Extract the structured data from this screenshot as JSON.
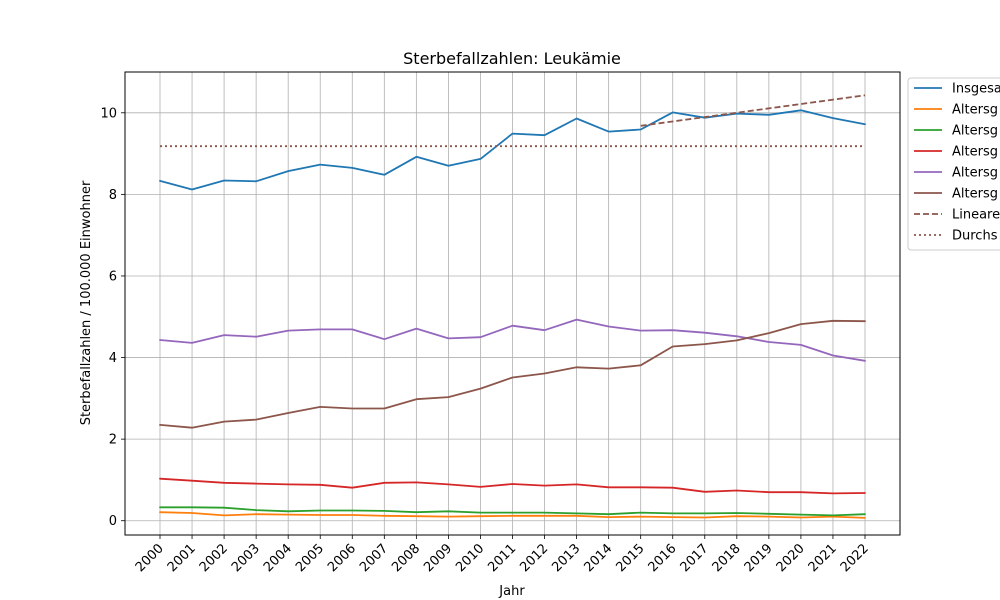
{
  "chart_data": {
    "type": "line",
    "title": "Sterbefallzahlen: Leukämie",
    "xlabel": "Jahr",
    "ylabel": "Sterbefallzahlen / 100.000 Einwohner",
    "ylim": [
      -0.35,
      11
    ],
    "yticks": [
      0,
      2,
      4,
      6,
      8,
      10
    ],
    "grid": true,
    "legend_position": "right-outside-top",
    "x": [
      "2000",
      "2001",
      "2002",
      "2003",
      "2004",
      "2005",
      "2006",
      "2007",
      "2008",
      "2009",
      "2010",
      "2011",
      "2012",
      "2013",
      "2014",
      "2015",
      "2016",
      "2017",
      "2018",
      "2019",
      "2020",
      "2021",
      "2022"
    ],
    "series": [
      {
        "name": "Insgesa",
        "color": "#1f77b4",
        "style": "solid",
        "values": [
          8.33,
          8.12,
          8.34,
          8.32,
          8.57,
          8.73,
          8.65,
          8.48,
          8.92,
          8.7,
          8.87,
          9.49,
          9.45,
          9.86,
          9.54,
          9.59,
          10.01,
          9.88,
          9.98,
          9.95,
          10.06,
          9.87,
          9.72
        ]
      },
      {
        "name": "Altersg",
        "color": "#ff7f0e",
        "style": "solid",
        "values": [
          0.21,
          0.19,
          0.13,
          0.16,
          0.15,
          0.14,
          0.14,
          0.12,
          0.11,
          0.1,
          0.11,
          0.12,
          0.12,
          0.12,
          0.09,
          0.1,
          0.09,
          0.08,
          0.11,
          0.1,
          0.08,
          0.1,
          0.07
        ]
      },
      {
        "name": "Altersg",
        "color": "#2ca02c",
        "style": "solid",
        "values": [
          0.33,
          0.33,
          0.32,
          0.26,
          0.23,
          0.25,
          0.25,
          0.24,
          0.21,
          0.23,
          0.2,
          0.2,
          0.2,
          0.18,
          0.16,
          0.2,
          0.18,
          0.18,
          0.19,
          0.17,
          0.15,
          0.13,
          0.16
        ]
      },
      {
        "name": "Altersg",
        "color": "#d62728",
        "style": "solid",
        "values": [
          1.03,
          0.98,
          0.93,
          0.91,
          0.89,
          0.88,
          0.81,
          0.93,
          0.94,
          0.89,
          0.83,
          0.9,
          0.86,
          0.89,
          0.82,
          0.82,
          0.81,
          0.71,
          0.74,
          0.7,
          0.7,
          0.67,
          0.68
        ]
      },
      {
        "name": "Altersg",
        "color": "#9467bd",
        "style": "solid",
        "values": [
          4.43,
          4.36,
          4.55,
          4.51,
          4.66,
          4.69,
          4.69,
          4.45,
          4.71,
          4.47,
          4.5,
          4.78,
          4.67,
          4.93,
          4.76,
          4.66,
          4.67,
          4.61,
          4.52,
          4.38,
          4.31,
          4.05,
          3.92
        ]
      },
      {
        "name": "Altersg",
        "color": "#8c564b",
        "style": "solid",
        "values": [
          2.35,
          2.28,
          2.43,
          2.48,
          2.64,
          2.79,
          2.75,
          2.75,
          2.98,
          3.03,
          3.24,
          3.51,
          3.61,
          3.76,
          3.73,
          3.81,
          4.27,
          4.33,
          4.42,
          4.6,
          4.82,
          4.9,
          4.89
        ]
      },
      {
        "name": "Lineare",
        "color": "#8c564b",
        "style": "dashed",
        "x": [
          "2015",
          "2022"
        ],
        "values": [
          9.68,
          10.43
        ]
      },
      {
        "name": "Durchs",
        "color": "#8c564b",
        "style": "dotted",
        "x": [
          "2000",
          "2022"
        ],
        "values": [
          9.18,
          9.18
        ]
      }
    ]
  }
}
